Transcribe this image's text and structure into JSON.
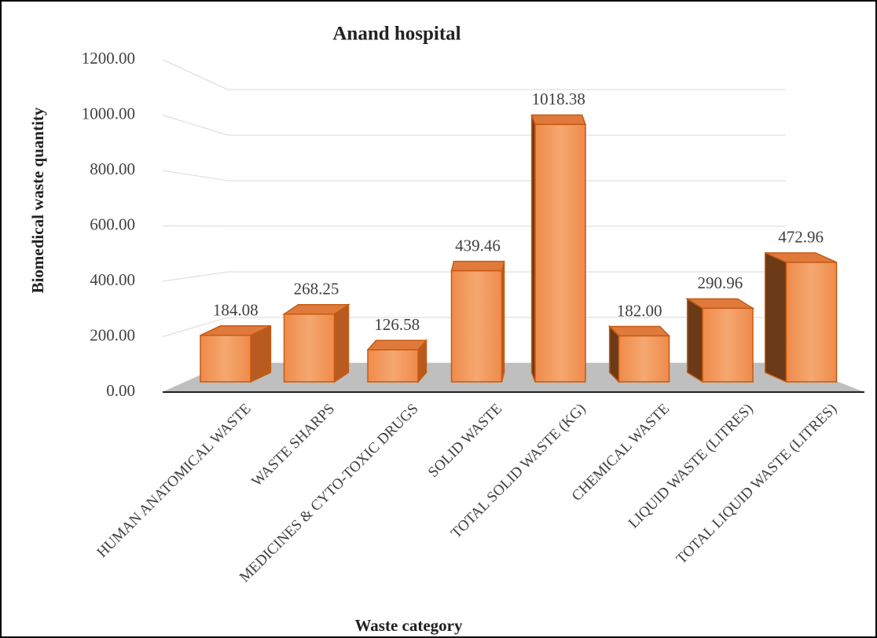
{
  "chart_data": {
    "type": "bar3d",
    "title": "Anand hospital",
    "x_label": "Waste category",
    "y_label": "Biomedical waste quantity",
    "categories": [
      "HUMAN ANATOMICAL WASTE",
      "WASTE SHARPS",
      "MEDICINES  & CYTO-TOXIC DRUGS",
      "SOLID WASTE",
      "TOTAL SOLID WASTE (KG)",
      "CHEMICAL WASTE",
      "LIQUID WASTE (LITRES)",
      "TOTAL LIQUID WASTE (LITRES)"
    ],
    "values": [
      184.08,
      268.25,
      126.58,
      439.46,
      1018.38,
      182,
      290.96,
      472.96
    ],
    "value_labels": [
      "184.08",
      "268.25",
      "126.58",
      "439.46",
      "1018.38",
      "182.00",
      "290.96",
      "472.96"
    ],
    "color": "#f4a46a",
    "ylim": [
      0,
      1200
    ],
    "yticks": [
      {
        "value": 0,
        "label": "0.00"
      },
      {
        "value": 200,
        "label": "200.00"
      },
      {
        "value": 400,
        "label": "400.00"
      },
      {
        "value": 600,
        "label": "600.00"
      },
      {
        "value": 800,
        "label": "800.00"
      },
      {
        "value": 1000,
        "label": "1000.00"
      },
      {
        "value": 1200,
        "label": "1200.00"
      }
    ],
    "grid": true
  }
}
